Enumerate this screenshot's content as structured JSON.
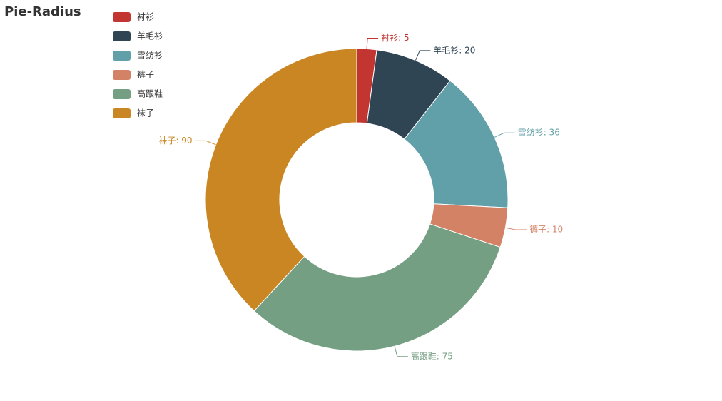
{
  "chart_data": {
    "type": "pie",
    "title": "Pie-Radius",
    "categories": [
      "衬衫",
      "羊毛衫",
      "雪纺衫",
      "裤子",
      "高跟鞋",
      "袜子"
    ],
    "values": [
      5,
      20,
      36,
      10,
      75,
      90
    ],
    "value_labels": [
      "衬衫: 5",
      "羊毛衫: 20",
      "雪纺衫: 36",
      "裤子: 10",
      "高跟鞋: 75",
      "袜子: 90"
    ],
    "colors": [
      "#c23531",
      "#2f4554",
      "#61a0a8",
      "#d48265",
      "#749f83",
      "#ca8622"
    ],
    "legend": "top-left"
  }
}
